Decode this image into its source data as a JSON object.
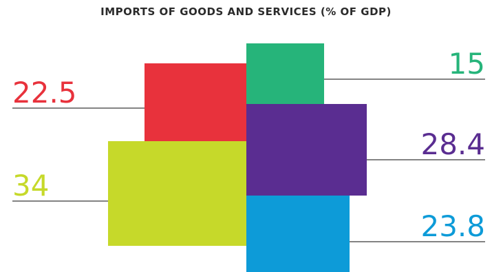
{
  "chart_data": {
    "type": "bar",
    "title": "IMPORTS OF GOODS AND SERVICES (% OF GDP)",
    "unit": "% of GDP",
    "values": [
      {
        "value": 22.5,
        "label": "22.5",
        "color": "#e8323c",
        "side": "left"
      },
      {
        "value": 34,
        "label": "34",
        "color": "#c6d92a",
        "side": "left"
      },
      {
        "value": 15,
        "label": "15",
        "color": "#26b47a",
        "side": "right"
      },
      {
        "value": 28.4,
        "label": "28.4",
        "color": "#5a2d91",
        "side": "right"
      },
      {
        "value": 23.8,
        "label": "23.8",
        "color": "#0d9bd8",
        "side": "right"
      }
    ]
  }
}
